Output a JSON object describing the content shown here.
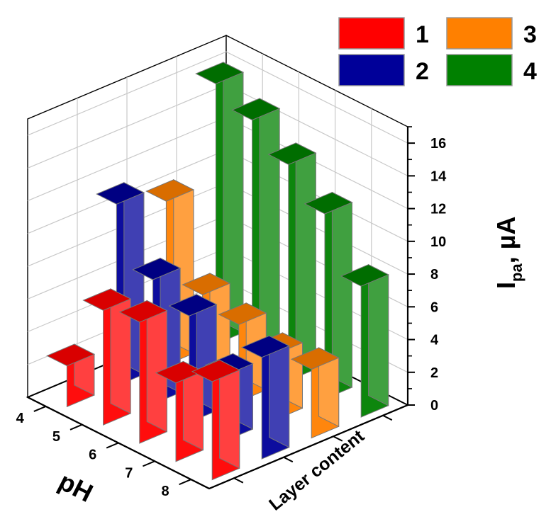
{
  "chart_data": {
    "type": "bar3d",
    "x": [
      8,
      7,
      6,
      5,
      4
    ],
    "xlabel": "pH",
    "ylabel": "Layer content",
    "zlabel_main": "I",
    "zlabel_sub": "pa",
    "zlabel_unit": ", µA",
    "zlim": [
      0,
      17
    ],
    "zticks": [
      "0",
      "2",
      "4",
      "6",
      "8",
      "10",
      "12",
      "14",
      "16"
    ],
    "xticks": [
      "8",
      "7",
      "6",
      "5",
      "4"
    ],
    "grid": true,
    "legend_position": "top-right",
    "series": [
      {
        "name": "1",
        "color": "#ff0000",
        "values": [
          6.0,
          4.8,
          7.4,
          7.0,
          2.5
        ]
      },
      {
        "name": "2",
        "color": "#000099",
        "values": [
          6.2,
          4.0,
          6.5,
          7.6,
          11.1
        ]
      },
      {
        "name": "3",
        "color": "#ff8000",
        "values": [
          4.2,
          4.0,
          4.7,
          5.4,
          10.0
        ]
      },
      {
        "name": "4",
        "color": "#008000",
        "values": [
          8.0,
          11.3,
          13.2,
          14.8,
          15.9
        ]
      }
    ]
  }
}
